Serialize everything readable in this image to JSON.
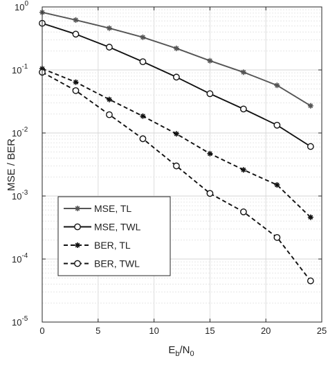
{
  "chart_data": {
    "type": "line",
    "xlabel": "E",
    "xlabel_sub": "b",
    "xlabel_mid": "/N",
    "xlabel_sub2": "0",
    "ylabel": "MSE / BER",
    "xlim": [
      0,
      25
    ],
    "ylim": [
      1e-05,
      1
    ],
    "yscale": "log",
    "grid": true,
    "legend_position": "lower-left",
    "x_ticks": [
      0,
      5,
      10,
      15,
      20,
      25
    ],
    "y_tick_exponents": [
      -5,
      -4,
      -3,
      -2,
      -1,
      0
    ],
    "x": [
      0,
      3,
      6,
      9,
      12,
      15,
      18,
      21,
      24
    ],
    "series": [
      {
        "name": "MSE, TL",
        "marker": "asterisk",
        "dash": "solid",
        "color": "#555555",
        "values": [
          0.82,
          0.62,
          0.46,
          0.33,
          0.22,
          0.14,
          0.092,
          0.057,
          0.027
        ]
      },
      {
        "name": "MSE, TWL",
        "marker": "circle",
        "dash": "solid",
        "color": "#111111",
        "values": [
          0.55,
          0.37,
          0.23,
          0.135,
          0.077,
          0.042,
          0.024,
          0.0133,
          0.0061
        ]
      },
      {
        "name": "BER, TL",
        "marker": "asterisk",
        "dash": "dashed",
        "color": "#111111",
        "values": [
          0.105,
          0.064,
          0.034,
          0.0185,
          0.0097,
          0.0047,
          0.0026,
          0.0015,
          0.00046
        ]
      },
      {
        "name": "BER, TWL",
        "marker": "circle",
        "dash": "dashed",
        "color": "#111111",
        "values": [
          0.092,
          0.047,
          0.0195,
          0.0081,
          0.003,
          0.0011,
          0.00056,
          0.00022,
          4.5e-05
        ]
      }
    ]
  }
}
